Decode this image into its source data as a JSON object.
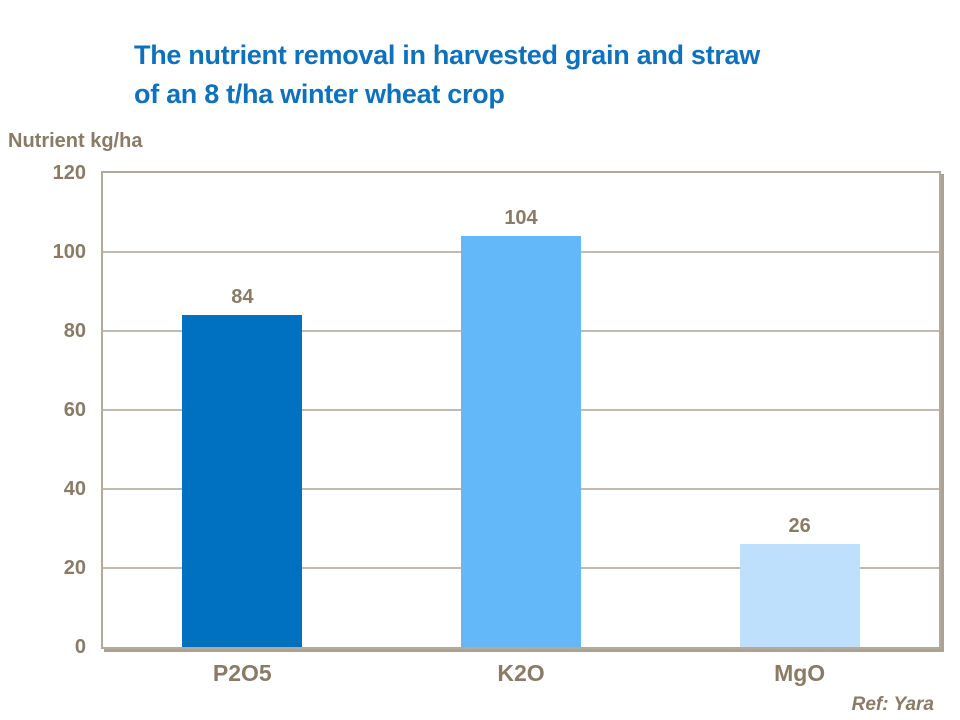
{
  "title": {
    "line1": "The nutrient removal in harvested grain and straw",
    "line2": "of an 8 t/ha winter wheat crop"
  },
  "chart_data": {
    "type": "bar",
    "title": "The nutrient removal in harvested grain and straw of an 8 t/ha winter wheat crop",
    "ylabel": "Nutrient kg/ha",
    "xlabel": "",
    "categories": [
      "P2O5",
      "K2O",
      "MgO"
    ],
    "values": [
      84,
      104,
      26
    ],
    "data_labels": [
      "84",
      "104",
      "26"
    ],
    "ylim": [
      0,
      120
    ],
    "yticks": [
      0,
      20,
      40,
      60,
      80,
      100,
      120
    ],
    "grid": "horizontal gridlines every 20",
    "legend_position": "none",
    "bar_colors": [
      "#0070C0",
      "#63B8FA",
      "#BFE0FC"
    ]
  },
  "footer": {
    "reference": "Ref: Yara"
  },
  "colors": {
    "title_text": "#0D71BD",
    "axis_text": "#8A7B67",
    "plot_border": "#B3AA9B",
    "gridline": "#C2BAAD",
    "plot_shadow": "#ABA295",
    "background": "#FFFFFF"
  }
}
